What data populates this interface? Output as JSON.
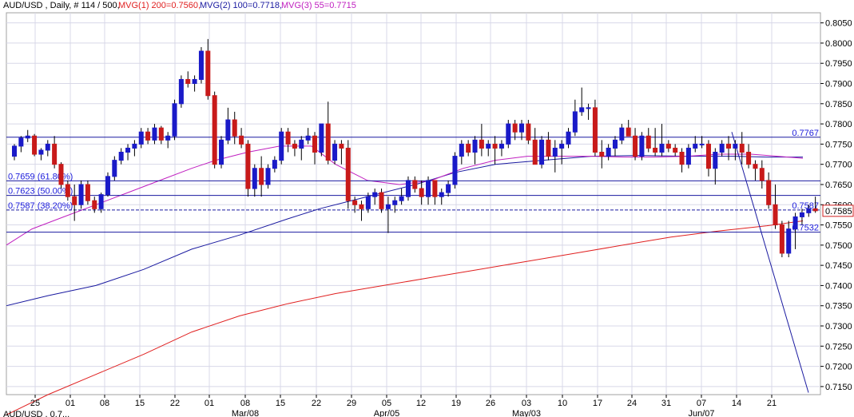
{
  "header": {
    "symbol_info": "AUD/USD , Daily, # 114 / 500,",
    "mvg1": "MVG(1) 200=0.7560,",
    "mvg2": "MVG(2) 100=0.7718,",
    "mvg3": "MVG(3) 55=0.7715"
  },
  "footer": {
    "stub_text": "AUD/USD , 0.7..."
  },
  "colors": {
    "up_candle": "#1a1ac8",
    "down_candle": "#c81a1a",
    "ma200": "#e02020",
    "ma100": "#1a1aa0",
    "ma55": "#c020c0",
    "level_lines": "#1a1aa0",
    "grid": "#d8d8e8"
  },
  "chart_data": {
    "type": "candlestick",
    "title": "AUD/USD , Daily",
    "ylim": [
      0.713,
      0.8075
    ],
    "y_ticks": [
      "0.8050",
      "0.8000",
      "0.7950",
      "0.7900",
      "0.7850",
      "0.7800",
      "0.7750",
      "0.7700",
      "0.7650",
      "0.7600",
      "0.7550",
      "0.7500",
      "0.7450",
      "0.7400",
      "0.7350",
      "0.7300",
      "0.7250",
      "0.7200",
      "0.7150"
    ],
    "x_ticks": [
      "25",
      "01",
      "08",
      "15",
      "22",
      "01",
      "08",
      "15",
      "22",
      "29",
      "05",
      "12",
      "19",
      "26",
      "03",
      "10",
      "17",
      "24",
      "31",
      "07",
      "14",
      "21"
    ],
    "x_month_labels": [
      "Mar/08",
      "Apr/05",
      "May/03",
      "Jun/07"
    ],
    "current_price_label": "0.7585",
    "levels": [
      {
        "value": 0.7767,
        "label": "0.7767"
      },
      {
        "value": 0.7659,
        "label": "0.7659 (61.80%)"
      },
      {
        "value": 0.7623,
        "label": "0.7623 (50.00%)"
      },
      {
        "value": 0.7587,
        "label": "0.7587 (38.20%)"
      },
      {
        "value": 0.7532,
        "label": "0.7532"
      }
    ],
    "right_level_labels": [
      {
        "value": 0.7767,
        "label": "0.7767"
      },
      {
        "value": 0.7587,
        "label": "0.7587"
      },
      {
        "value": 0.7532,
        "label": "0.7532"
      }
    ],
    "candles": [
      [
        0.772,
        0.775,
        0.771,
        0.7745
      ],
      [
        0.7745,
        0.777,
        0.773,
        0.7765
      ],
      [
        0.7765,
        0.7785,
        0.7755,
        0.777
      ],
      [
        0.777,
        0.7775,
        0.772,
        0.7725
      ],
      [
        0.7725,
        0.774,
        0.771,
        0.7735
      ],
      [
        0.7735,
        0.776,
        0.772,
        0.775
      ],
      [
        0.775,
        0.777,
        0.769,
        0.77
      ],
      [
        0.77,
        0.7705,
        0.764,
        0.765
      ],
      [
        0.765,
        0.766,
        0.761,
        0.762
      ],
      [
        0.762,
        0.765,
        0.756,
        0.76
      ],
      [
        0.76,
        0.766,
        0.759,
        0.765
      ],
      [
        0.765,
        0.766,
        0.76,
        0.761
      ],
      [
        0.761,
        0.762,
        0.758,
        0.759
      ],
      [
        0.759,
        0.763,
        0.758,
        0.7625
      ],
      [
        0.7625,
        0.768,
        0.762,
        0.767
      ],
      [
        0.767,
        0.772,
        0.766,
        0.771
      ],
      [
        0.771,
        0.774,
        0.77,
        0.773
      ],
      [
        0.773,
        0.775,
        0.771,
        0.774
      ],
      [
        0.774,
        0.776,
        0.772,
        0.775
      ],
      [
        0.775,
        0.779,
        0.774,
        0.778
      ],
      [
        0.778,
        0.779,
        0.775,
        0.776
      ],
      [
        0.776,
        0.78,
        0.775,
        0.779
      ],
      [
        0.779,
        0.7795,
        0.775,
        0.776
      ],
      [
        0.776,
        0.778,
        0.774,
        0.777
      ],
      [
        0.777,
        0.786,
        0.776,
        0.785
      ],
      [
        0.785,
        0.792,
        0.784,
        0.791
      ],
      [
        0.791,
        0.793,
        0.789,
        0.79
      ],
      [
        0.79,
        0.792,
        0.788,
        0.791
      ],
      [
        0.791,
        0.799,
        0.79,
        0.798
      ],
      [
        0.798,
        0.801,
        0.786,
        0.787
      ],
      [
        0.787,
        0.788,
        0.769,
        0.77
      ],
      [
        0.77,
        0.777,
        0.769,
        0.776
      ],
      [
        0.776,
        0.784,
        0.775,
        0.781
      ],
      [
        0.781,
        0.783,
        0.775,
        0.777
      ],
      [
        0.777,
        0.779,
        0.774,
        0.775
      ],
      [
        0.775,
        0.776,
        0.762,
        0.764
      ],
      [
        0.764,
        0.77,
        0.762,
        0.769
      ],
      [
        0.769,
        0.772,
        0.762,
        0.765
      ],
      [
        0.765,
        0.77,
        0.764,
        0.769
      ],
      [
        0.769,
        0.772,
        0.768,
        0.771
      ],
      [
        0.771,
        0.779,
        0.77,
        0.778
      ],
      [
        0.778,
        0.779,
        0.773,
        0.775
      ],
      [
        0.775,
        0.776,
        0.772,
        0.774
      ],
      [
        0.774,
        0.777,
        0.771,
        0.776
      ],
      [
        0.776,
        0.779,
        0.775,
        0.777
      ],
      [
        0.777,
        0.778,
        0.77,
        0.773
      ],
      [
        0.773,
        0.78,
        0.772,
        0.78
      ],
      [
        0.78,
        0.7855,
        0.77,
        0.771
      ],
      [
        0.771,
        0.776,
        0.77,
        0.775
      ],
      [
        0.775,
        0.776,
        0.77,
        0.774
      ],
      [
        0.774,
        0.776,
        0.759,
        0.761
      ],
      [
        0.761,
        0.762,
        0.758,
        0.76
      ],
      [
        0.76,
        0.761,
        0.756,
        0.759
      ],
      [
        0.759,
        0.763,
        0.758,
        0.762
      ],
      [
        0.762,
        0.764,
        0.76,
        0.763
      ],
      [
        0.763,
        0.764,
        0.758,
        0.759
      ],
      [
        0.759,
        0.762,
        0.753,
        0.76
      ],
      [
        0.76,
        0.762,
        0.758,
        0.761
      ],
      [
        0.761,
        0.764,
        0.76,
        0.762
      ],
      [
        0.762,
        0.767,
        0.761,
        0.766
      ],
      [
        0.766,
        0.767,
        0.763,
        0.764
      ],
      [
        0.764,
        0.766,
        0.76,
        0.762
      ],
      [
        0.762,
        0.767,
        0.76,
        0.766
      ],
      [
        0.766,
        0.766,
        0.76,
        0.762
      ],
      [
        0.762,
        0.764,
        0.76,
        0.763
      ],
      [
        0.763,
        0.766,
        0.762,
        0.765
      ],
      [
        0.765,
        0.773,
        0.764,
        0.772
      ],
      [
        0.772,
        0.776,
        0.77,
        0.775
      ],
      [
        0.775,
        0.776,
        0.772,
        0.773
      ],
      [
        0.773,
        0.777,
        0.77,
        0.776
      ],
      [
        0.776,
        0.78,
        0.772,
        0.774
      ],
      [
        0.774,
        0.776,
        0.772,
        0.775
      ],
      [
        0.775,
        0.777,
        0.77,
        0.774
      ],
      [
        0.774,
        0.776,
        0.772,
        0.775
      ],
      [
        0.775,
        0.781,
        0.774,
        0.78
      ],
      [
        0.78,
        0.781,
        0.776,
        0.778
      ],
      [
        0.778,
        0.781,
        0.776,
        0.78
      ],
      [
        0.78,
        0.781,
        0.775,
        0.776
      ],
      [
        0.776,
        0.779,
        0.77,
        0.77
      ],
      [
        0.77,
        0.777,
        0.769,
        0.776
      ],
      [
        0.776,
        0.778,
        0.771,
        0.772
      ],
      [
        0.772,
        0.776,
        0.768,
        0.774
      ],
      [
        0.774,
        0.776,
        0.77,
        0.775
      ],
      [
        0.775,
        0.779,
        0.774,
        0.778
      ],
      [
        0.778,
        0.786,
        0.777,
        0.783
      ],
      [
        0.783,
        0.789,
        0.782,
        0.784
      ],
      [
        0.784,
        0.785,
        0.781,
        0.784
      ],
      [
        0.784,
        0.786,
        0.772,
        0.773
      ],
      [
        0.773,
        0.776,
        0.769,
        0.772
      ],
      [
        0.772,
        0.775,
        0.771,
        0.774
      ],
      [
        0.774,
        0.777,
        0.772,
        0.776
      ],
      [
        0.776,
        0.78,
        0.775,
        0.779
      ],
      [
        0.779,
        0.781,
        0.777,
        0.777
      ],
      [
        0.777,
        0.779,
        0.771,
        0.772
      ],
      [
        0.772,
        0.778,
        0.771,
        0.777
      ],
      [
        0.777,
        0.779,
        0.773,
        0.774
      ],
      [
        0.774,
        0.779,
        0.772,
        0.773
      ],
      [
        0.773,
        0.78,
        0.772,
        0.775
      ],
      [
        0.775,
        0.776,
        0.773,
        0.774
      ],
      [
        0.774,
        0.775,
        0.772,
        0.773
      ],
      [
        0.773,
        0.774,
        0.768,
        0.77
      ],
      [
        0.77,
        0.775,
        0.769,
        0.774
      ],
      [
        0.774,
        0.777,
        0.773,
        0.775
      ],
      [
        0.775,
        0.777,
        0.774,
        0.775
      ],
      [
        0.775,
        0.776,
        0.767,
        0.769
      ],
      [
        0.769,
        0.774,
        0.765,
        0.773
      ],
      [
        0.773,
        0.776,
        0.772,
        0.775
      ],
      [
        0.775,
        0.777,
        0.771,
        0.774
      ],
      [
        0.774,
        0.776,
        0.771,
        0.775
      ],
      [
        0.775,
        0.778,
        0.77,
        0.773
      ],
      [
        0.773,
        0.775,
        0.769,
        0.77
      ],
      [
        0.77,
        0.771,
        0.766,
        0.769
      ],
      [
        0.769,
        0.771,
        0.764,
        0.766
      ],
      [
        0.766,
        0.768,
        0.759,
        0.76
      ],
      [
        0.76,
        0.765,
        0.754,
        0.755
      ],
      [
        0.755,
        0.756,
        0.747,
        0.748
      ],
      [
        0.748,
        0.756,
        0.747,
        0.754
      ],
      [
        0.754,
        0.758,
        0.749,
        0.757
      ],
      [
        0.757,
        0.759,
        0.755,
        0.758
      ],
      [
        0.758,
        0.76,
        0.757,
        0.759
      ],
      [
        0.759,
        0.762,
        0.758,
        0.7585
      ]
    ]
  }
}
